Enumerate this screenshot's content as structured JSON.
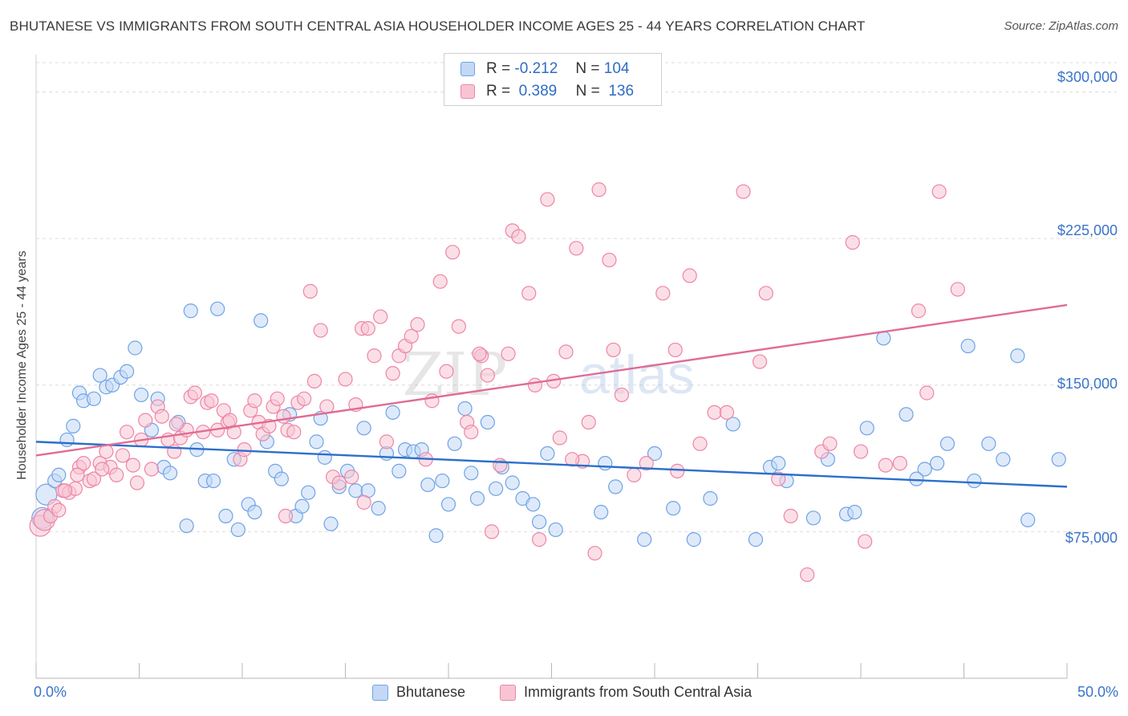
{
  "title": "BHUTANESE VS IMMIGRANTS FROM SOUTH CENTRAL ASIA HOUSEHOLDER INCOME AGES 25 - 44 YEARS CORRELATION CHART",
  "source": "Source: ZipAtlas.com",
  "watermark": {
    "zip": "ZIP",
    "atlas": "atlas"
  },
  "legend_top": [
    {
      "r_label": "R =",
      "r_value": "-0.212",
      "n_label": "N =",
      "n_value": "104"
    },
    {
      "r_label": "R =",
      "r_value": "0.389",
      "n_label": "N =",
      "n_value": "136"
    }
  ],
  "colors": {
    "bhutanese": "#6fa3e6",
    "bhutanese_fill": "#c2d8f5",
    "immigrants": "#ee85a6",
    "immigrants_fill": "#f8c4d4",
    "blue_line": "#2c6fcc",
    "pink_line": "#e06c93",
    "tick_text": "#3a74c9"
  },
  "chart_data": {
    "type": "scatter",
    "title": "BHUTANESE VS IMMIGRANTS FROM SOUTH CENTRAL ASIA HOUSEHOLDER INCOME AGES 25 - 44 YEARS CORRELATION CHART",
    "ylabel": "Householder Income Ages 25 - 44 years",
    "xlabel": "",
    "xlim": [
      0,
      50
    ],
    "ylim": [
      0,
      315000
    ],
    "x_tick_labels": [
      "0.0%",
      "50.0%"
    ],
    "y_tick_labels": [
      "$75,000",
      "$150,000",
      "$225,000",
      "$300,000"
    ],
    "y_tick_values": [
      75000,
      150000,
      225000,
      300000
    ],
    "legend_placement": "top-center",
    "grid": true,
    "series": [
      {
        "name": "Bhutanese",
        "R": -0.212,
        "N": 104,
        "trend": {
          "x": [
            0,
            50
          ],
          "y": [
            121000,
            98000
          ]
        },
        "points": [
          [
            0.3,
            82000
          ],
          [
            0.5,
            94000
          ],
          [
            0.9,
            101000
          ],
          [
            1.1,
            104000
          ],
          [
            1.5,
            122000
          ],
          [
            1.8,
            129000
          ],
          [
            2.1,
            146000
          ],
          [
            2.3,
            142000
          ],
          [
            2.8,
            143000
          ],
          [
            3.1,
            155000
          ],
          [
            3.4,
            149000
          ],
          [
            3.7,
            150000
          ],
          [
            4.1,
            154000
          ],
          [
            4.4,
            157000
          ],
          [
            4.8,
            169000
          ],
          [
            5.1,
            145000
          ],
          [
            5.6,
            127000
          ],
          [
            5.9,
            143000
          ],
          [
            6.2,
            108000
          ],
          [
            6.5,
            105000
          ],
          [
            6.9,
            131000
          ],
          [
            7.3,
            78000
          ],
          [
            7.5,
            188000
          ],
          [
            7.8,
            117000
          ],
          [
            8.2,
            101000
          ],
          [
            8.6,
            101000
          ],
          [
            8.8,
            189000
          ],
          [
            9.2,
            83000
          ],
          [
            9.6,
            112000
          ],
          [
            9.8,
            76000
          ],
          [
            10.3,
            89000
          ],
          [
            10.6,
            85000
          ],
          [
            10.9,
            183000
          ],
          [
            11.2,
            121000
          ],
          [
            11.6,
            106000
          ],
          [
            11.9,
            102000
          ],
          [
            12.3,
            135000
          ],
          [
            12.6,
            83000
          ],
          [
            12.9,
            88000
          ],
          [
            13.2,
            95000
          ],
          [
            13.6,
            121000
          ],
          [
            14.0,
            113000
          ],
          [
            14.3,
            79000
          ],
          [
            14.7,
            98000
          ],
          [
            15.1,
            106000
          ],
          [
            15.5,
            96000
          ],
          [
            15.9,
            128000
          ],
          [
            16.1,
            96000
          ],
          [
            16.6,
            87000
          ],
          [
            17.0,
            115000
          ],
          [
            17.3,
            136000
          ],
          [
            17.6,
            106000
          ],
          [
            17.9,
            117000
          ],
          [
            18.3,
            116000
          ],
          [
            18.7,
            117000
          ],
          [
            19.0,
            99000
          ],
          [
            19.4,
            73000
          ],
          [
            19.7,
            101000
          ],
          [
            20.0,
            89000
          ],
          [
            20.3,
            120000
          ],
          [
            20.8,
            138000
          ],
          [
            21.1,
            105000
          ],
          [
            21.4,
            92000
          ],
          [
            21.9,
            131000
          ],
          [
            22.3,
            97000
          ],
          [
            22.6,
            108000
          ],
          [
            23.1,
            100000
          ],
          [
            23.6,
            92000
          ],
          [
            24.1,
            89000
          ],
          [
            24.4,
            80000
          ],
          [
            24.8,
            115000
          ],
          [
            25.2,
            76000
          ],
          [
            27.4,
            85000
          ],
          [
            27.6,
            110000
          ],
          [
            28.1,
            98000
          ],
          [
            29.5,
            71000
          ],
          [
            30.0,
            115000
          ],
          [
            30.9,
            87000
          ],
          [
            31.9,
            71000
          ],
          [
            32.7,
            92000
          ],
          [
            33.8,
            130000
          ],
          [
            34.9,
            71000
          ],
          [
            35.6,
            108000
          ],
          [
            36.4,
            101000
          ],
          [
            37.7,
            82000
          ],
          [
            38.4,
            112000
          ],
          [
            39.3,
            84000
          ],
          [
            39.7,
            85000
          ],
          [
            40.3,
            128000
          ],
          [
            41.1,
            174000
          ],
          [
            42.2,
            135000
          ],
          [
            43.1,
            107000
          ],
          [
            43.7,
            110000
          ],
          [
            44.2,
            120000
          ],
          [
            45.2,
            170000
          ],
          [
            45.5,
            101000
          ],
          [
            46.2,
            120000
          ],
          [
            46.9,
            112000
          ],
          [
            47.6,
            165000
          ],
          [
            48.1,
            81000
          ],
          [
            49.6,
            112000
          ],
          [
            42.7,
            102000
          ],
          [
            36.0,
            110000
          ],
          [
            13.8,
            133000
          ]
        ]
      },
      {
        "name": "Immigrants from South Central Asia",
        "R": 0.389,
        "N": 136,
        "trend": {
          "x": [
            0,
            50
          ],
          "y": [
            114000,
            191000
          ]
        },
        "points": [
          [
            0.2,
            78000
          ],
          [
            0.4,
            81000
          ],
          [
            0.7,
            83000
          ],
          [
            0.9,
            88000
          ],
          [
            1.1,
            86000
          ],
          [
            1.3,
            96000
          ],
          [
            1.6,
            95000
          ],
          [
            1.9,
            97000
          ],
          [
            2.1,
            108000
          ],
          [
            2.3,
            110000
          ],
          [
            2.6,
            101000
          ],
          [
            2.8,
            102000
          ],
          [
            3.1,
            110000
          ],
          [
            3.4,
            116000
          ],
          [
            3.6,
            108000
          ],
          [
            3.9,
            104000
          ],
          [
            4.2,
            114000
          ],
          [
            4.4,
            126000
          ],
          [
            4.7,
            109000
          ],
          [
            5.1,
            122000
          ],
          [
            5.3,
            132000
          ],
          [
            5.6,
            107000
          ],
          [
            5.9,
            139000
          ],
          [
            6.1,
            134000
          ],
          [
            6.4,
            122000
          ],
          [
            6.7,
            116000
          ],
          [
            7.0,
            123000
          ],
          [
            7.3,
            127000
          ],
          [
            7.5,
            144000
          ],
          [
            7.7,
            146000
          ],
          [
            8.1,
            126000
          ],
          [
            8.3,
            141000
          ],
          [
            8.5,
            142000
          ],
          [
            8.8,
            127000
          ],
          [
            9.1,
            137000
          ],
          [
            9.3,
            131000
          ],
          [
            9.6,
            126000
          ],
          [
            9.9,
            112000
          ],
          [
            10.1,
            117000
          ],
          [
            10.4,
            137000
          ],
          [
            10.6,
            142000
          ],
          [
            10.8,
            131000
          ],
          [
            11.0,
            125000
          ],
          [
            11.3,
            129000
          ],
          [
            11.5,
            139000
          ],
          [
            11.7,
            143000
          ],
          [
            12.0,
            134000
          ],
          [
            12.2,
            127000
          ],
          [
            12.5,
            126000
          ],
          [
            12.7,
            141000
          ],
          [
            13.0,
            143000
          ],
          [
            13.3,
            198000
          ],
          [
            13.5,
            152000
          ],
          [
            13.8,
            178000
          ],
          [
            14.1,
            139000
          ],
          [
            14.4,
            103000
          ],
          [
            14.7,
            100000
          ],
          [
            15.0,
            153000
          ],
          [
            15.3,
            103000
          ],
          [
            15.5,
            140000
          ],
          [
            15.8,
            179000
          ],
          [
            16.1,
            179000
          ],
          [
            16.4,
            165000
          ],
          [
            16.7,
            185000
          ],
          [
            17.0,
            121000
          ],
          [
            17.3,
            156000
          ],
          [
            17.6,
            165000
          ],
          [
            17.9,
            170000
          ],
          [
            18.2,
            175000
          ],
          [
            18.5,
            181000
          ],
          [
            18.9,
            112000
          ],
          [
            19.2,
            142000
          ],
          [
            19.6,
            203000
          ],
          [
            19.9,
            157000
          ],
          [
            20.2,
            218000
          ],
          [
            20.5,
            180000
          ],
          [
            20.9,
            131000
          ],
          [
            21.1,
            126000
          ],
          [
            21.6,
            165000
          ],
          [
            21.9,
            155000
          ],
          [
            22.1,
            75000
          ],
          [
            22.5,
            109000
          ],
          [
            22.9,
            166000
          ],
          [
            23.1,
            229000
          ],
          [
            23.4,
            226000
          ],
          [
            23.9,
            197000
          ],
          [
            24.4,
            71000
          ],
          [
            24.8,
            245000
          ],
          [
            25.1,
            152000
          ],
          [
            25.4,
            123000
          ],
          [
            25.7,
            167000
          ],
          [
            26.2,
            220000
          ],
          [
            26.5,
            111000
          ],
          [
            26.8,
            131000
          ],
          [
            27.1,
            64000
          ],
          [
            27.3,
            250000
          ],
          [
            27.8,
            214000
          ],
          [
            28.0,
            168000
          ],
          [
            28.4,
            145000
          ],
          [
            29.6,
            110000
          ],
          [
            31.0,
            168000
          ],
          [
            31.1,
            106000
          ],
          [
            31.7,
            206000
          ],
          [
            32.2,
            120000
          ],
          [
            32.9,
            136000
          ],
          [
            34.3,
            249000
          ],
          [
            35.1,
            162000
          ],
          [
            35.4,
            197000
          ],
          [
            36.6,
            83000
          ],
          [
            37.4,
            53000
          ],
          [
            38.1,
            116000
          ],
          [
            38.5,
            120000
          ],
          [
            39.6,
            223000
          ],
          [
            40.2,
            70000
          ],
          [
            41.2,
            109000
          ],
          [
            41.9,
            110000
          ],
          [
            42.8,
            188000
          ],
          [
            43.2,
            146000
          ],
          [
            43.8,
            249000
          ],
          [
            44.7,
            199000
          ],
          [
            30.4,
            197000
          ],
          [
            33.5,
            136000
          ],
          [
            24.2,
            150000
          ],
          [
            21.5,
            166000
          ],
          [
            26.0,
            112000
          ],
          [
            29.0,
            104000
          ],
          [
            36.0,
            102000
          ],
          [
            40.0,
            116000
          ],
          [
            12.1,
            83000
          ],
          [
            15.9,
            90000
          ],
          [
            4.9,
            100000
          ],
          [
            6.8,
            130000
          ],
          [
            9.4,
            132000
          ],
          [
            2.0,
            104000
          ],
          [
            3.2,
            107000
          ],
          [
            1.4,
            96000
          ]
        ]
      }
    ]
  },
  "legend_bottom": [
    "Bhutanese",
    "Immigrants from South Central Asia"
  ]
}
